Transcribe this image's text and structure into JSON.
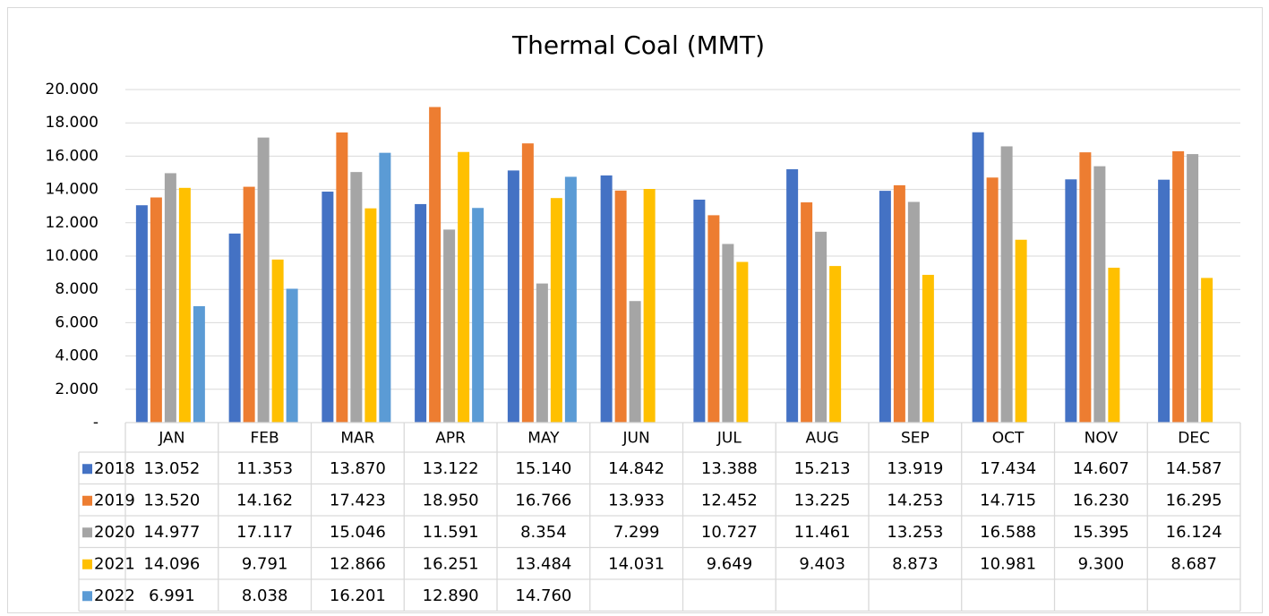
{
  "chart_data": {
    "type": "bar",
    "title": "Thermal Coal (MMT)",
    "categories": [
      "JAN",
      "FEB",
      "MAR",
      "APR",
      "MAY",
      "JUN",
      "JUL",
      "AUG",
      "SEP",
      "OCT",
      "NOV",
      "DEC"
    ],
    "ylim": [
      0,
      20
    ],
    "yticks": [
      {
        "value": 0,
        "label": "-"
      },
      {
        "value": 2,
        "label": "2.000"
      },
      {
        "value": 4,
        "label": "4.000"
      },
      {
        "value": 6,
        "label": "6.000"
      },
      {
        "value": 8,
        "label": "8.000"
      },
      {
        "value": 10,
        "label": "10.000"
      },
      {
        "value": 12,
        "label": "12.000"
      },
      {
        "value": 14,
        "label": "14.000"
      },
      {
        "value": 16,
        "label": "16.000"
      },
      {
        "value": 18,
        "label": "18.000"
      },
      {
        "value": 20,
        "label": "20.000"
      }
    ],
    "grid": true,
    "series": [
      {
        "name": "2018",
        "color": "#4472c4",
        "values": [
          13.052,
          11.353,
          13.87,
          13.122,
          15.14,
          14.842,
          13.388,
          15.213,
          13.919,
          17.434,
          14.607,
          14.587
        ],
        "value_labels": [
          "13.052",
          "11.353",
          "13.870",
          "13.122",
          "15.140",
          "14.842",
          "13.388",
          "15.213",
          "13.919",
          "17.434",
          "14.607",
          "14.587"
        ]
      },
      {
        "name": "2019",
        "color": "#ed7d31",
        "values": [
          13.52,
          14.162,
          17.423,
          18.95,
          16.766,
          13.933,
          12.452,
          13.225,
          14.253,
          14.715,
          16.23,
          16.295
        ],
        "value_labels": [
          "13.520",
          "14.162",
          "17.423",
          "18.950",
          "16.766",
          "13.933",
          "12.452",
          "13.225",
          "14.253",
          "14.715",
          "16.230",
          "16.295"
        ]
      },
      {
        "name": "2020",
        "color": "#a5a5a5",
        "values": [
          14.977,
          17.117,
          15.046,
          11.591,
          8.354,
          7.299,
          10.727,
          11.461,
          13.253,
          16.588,
          15.395,
          16.124
        ],
        "value_labels": [
          "14.977",
          "17.117",
          "15.046",
          "11.591",
          "8.354",
          "7.299",
          "10.727",
          "11.461",
          "13.253",
          "16.588",
          "15.395",
          "16.124"
        ]
      },
      {
        "name": "2021",
        "color": "#ffc000",
        "values": [
          14.096,
          9.791,
          12.866,
          16.251,
          13.484,
          14.031,
          9.649,
          9.403,
          8.873,
          10.981,
          9.3,
          8.687
        ],
        "value_labels": [
          "14.096",
          "9.791",
          "12.866",
          "16.251",
          "13.484",
          "14.031",
          "9.649",
          "9.403",
          "8.873",
          "10.981",
          "9.300",
          "8.687"
        ]
      },
      {
        "name": "2022",
        "color": "#5b9bd5",
        "values": [
          6.991,
          8.038,
          16.201,
          12.89,
          14.76,
          null,
          null,
          null,
          null,
          null,
          null,
          null
        ],
        "value_labels": [
          "6.991",
          "8.038",
          "16.201",
          "12.890",
          "14.760",
          null,
          null,
          null,
          null,
          null,
          null,
          null
        ]
      }
    ]
  }
}
